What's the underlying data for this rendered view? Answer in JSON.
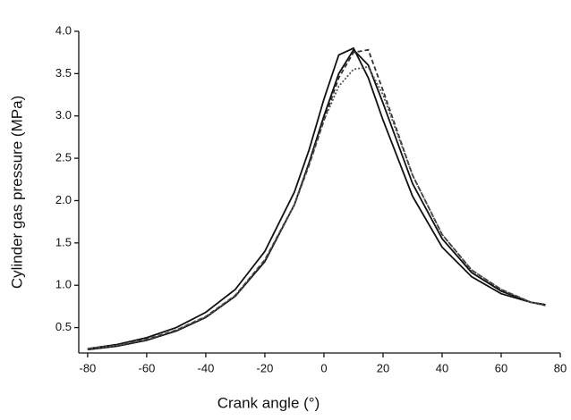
{
  "chart_data": {
    "type": "line",
    "x_label": "Crank angle (°)",
    "y_label": "Cylinder gas pressure (MPa)",
    "x": [
      -80,
      -70,
      -60,
      -50,
      -40,
      -30,
      -20,
      -10,
      -5,
      0,
      5,
      10,
      15,
      20,
      30,
      40,
      50,
      60,
      70,
      75
    ],
    "series": [
      {
        "color": "#111111",
        "dash": "none",
        "values": [
          0.25,
          0.3,
          0.38,
          0.5,
          0.68,
          0.95,
          1.4,
          2.1,
          2.6,
          3.2,
          3.72,
          3.8,
          3.45,
          2.95,
          2.05,
          1.45,
          1.1,
          0.9,
          0.8,
          0.77
        ]
      },
      {
        "color": "#111111",
        "dash": "none",
        "values": [
          0.24,
          0.28,
          0.35,
          0.46,
          0.62,
          0.87,
          1.28,
          1.95,
          2.45,
          3.0,
          3.5,
          3.78,
          3.6,
          3.15,
          2.2,
          1.55,
          1.15,
          0.93,
          0.8,
          0.77
        ]
      },
      {
        "color": "#333333",
        "dash": "5,3",
        "values": [
          0.25,
          0.29,
          0.36,
          0.47,
          0.63,
          0.88,
          1.3,
          1.95,
          2.42,
          2.95,
          3.45,
          3.75,
          3.78,
          3.3,
          2.3,
          1.6,
          1.18,
          0.95,
          0.8,
          0.76
        ]
      },
      {
        "color": "#555555",
        "dash": "2,2",
        "values": [
          0.25,
          0.29,
          0.36,
          0.47,
          0.63,
          0.88,
          1.3,
          1.95,
          2.42,
          2.95,
          3.35,
          3.55,
          3.58,
          3.25,
          2.3,
          1.6,
          1.18,
          0.95,
          0.8,
          0.76
        ]
      }
    ],
    "xlim": [
      -83,
      80
    ],
    "ylim": [
      0.2,
      4.0
    ],
    "xticks": [
      -80,
      -60,
      -40,
      -20,
      0,
      20,
      40,
      60,
      80
    ],
    "yticks": [
      0.5,
      {
        "value": 1,
        "label": "1.0"
      },
      1.5,
      {
        "value": 2,
        "label": "2.0"
      },
      2.5,
      {
        "value": 3,
        "label": "3.0"
      },
      3.5,
      {
        "value": 4,
        "label": "4.0"
      }
    ]
  }
}
